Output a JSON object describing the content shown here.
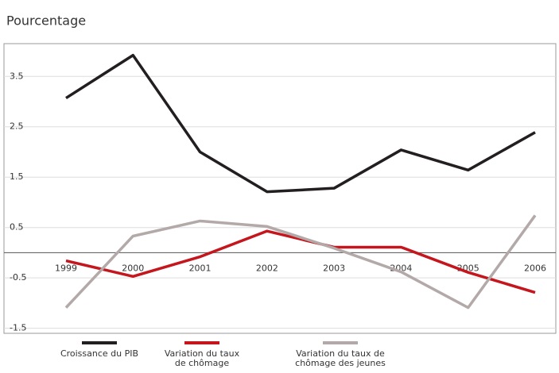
{
  "chart_data": {
    "type": "line",
    "y_label": "Pourcentage",
    "categories": [
      "1999",
      "2000",
      "2001",
      "2002",
      "2003",
      "2004",
      "2005",
      "2006"
    ],
    "series": [
      {
        "name": "Croissance du PIB",
        "color": "#231f20",
        "values": [
          3.07,
          3.92,
          2.0,
          1.21,
          1.28,
          2.04,
          1.64,
          2.39
        ]
      },
      {
        "name": "Variation du taux de chômage",
        "color": "#c4161c",
        "values": [
          -0.16,
          -0.47,
          -0.08,
          0.43,
          0.11,
          0.11,
          -0.39,
          -0.79
        ]
      },
      {
        "name": "Variation du taux de chômage des jeunes",
        "color": "#b3a9a9",
        "values": [
          -1.09,
          0.33,
          0.63,
          0.52,
          0.09,
          -0.38,
          -1.09,
          0.74
        ]
      }
    ],
    "ylim": [
      -1.6,
      4.15
    ],
    "yticks": [
      -1.5,
      -0.5,
      0.5,
      1.5,
      2.5,
      3.5
    ],
    "grid": true
  }
}
